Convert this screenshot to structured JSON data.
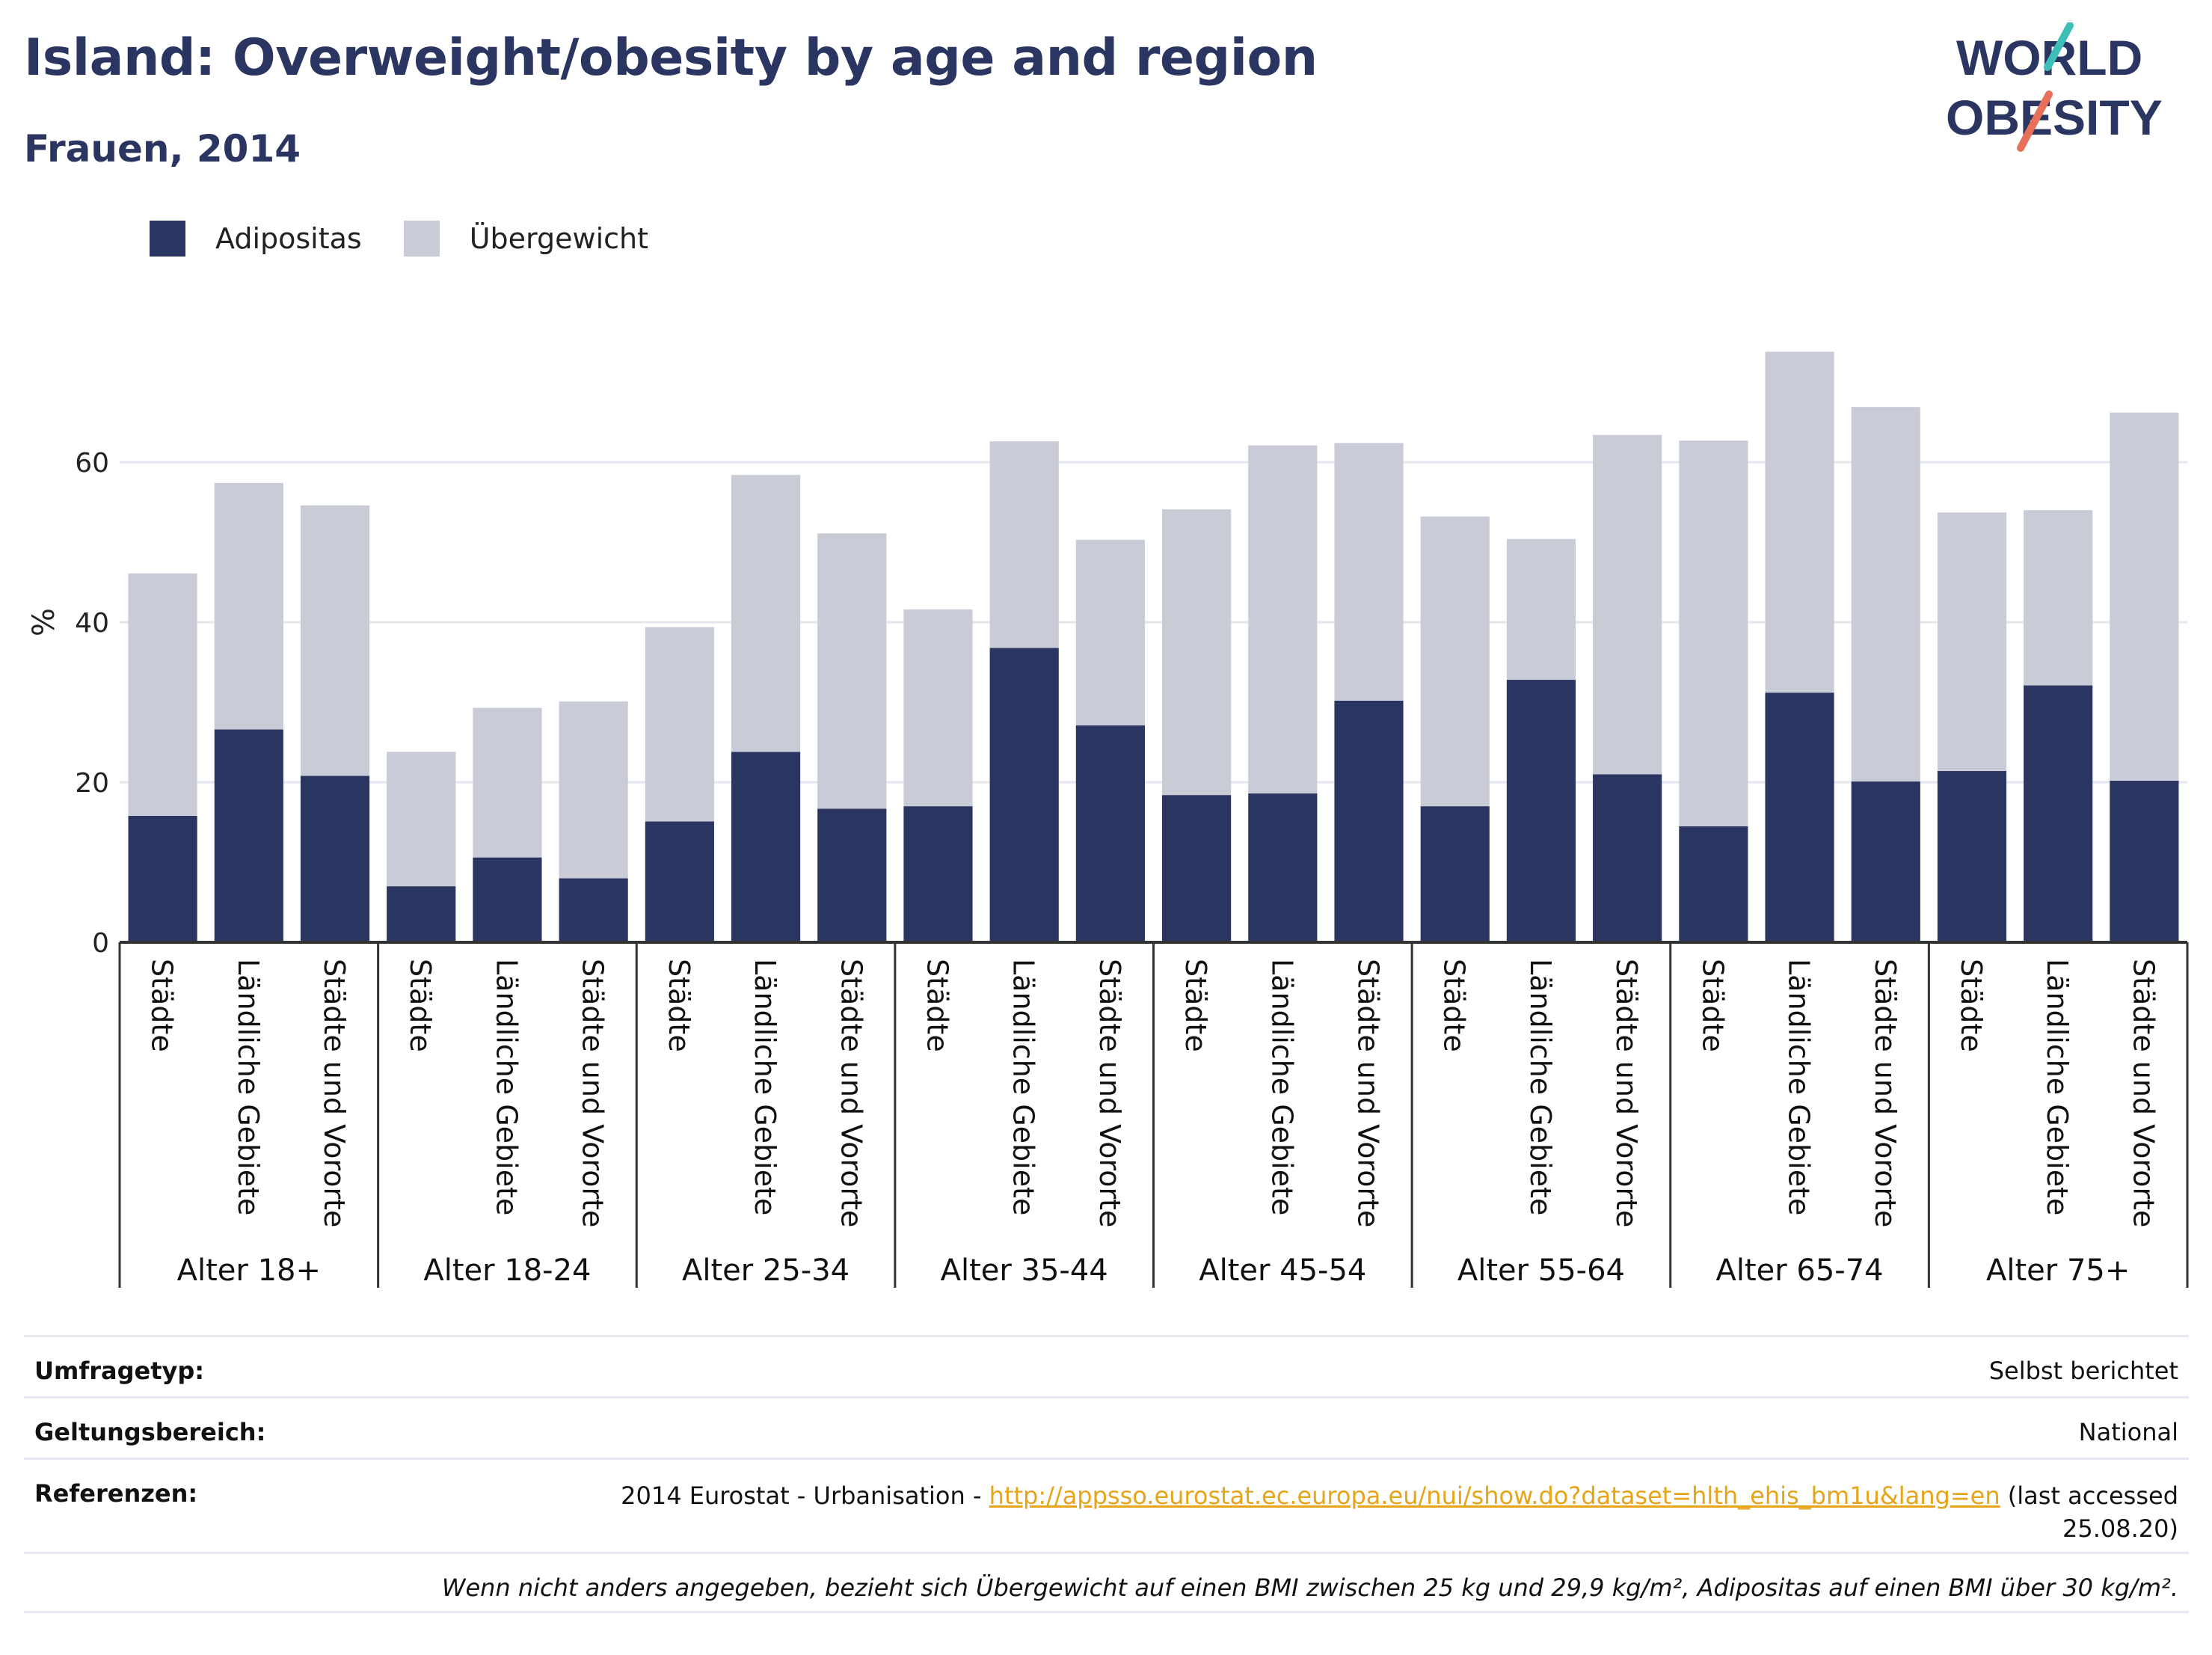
{
  "title": "Island: Overweight/obesity by age and region",
  "subtitle": "Frauen, 2014",
  "logo": {
    "line1": "WORLD",
    "line2": "OBESITY",
    "icon": "world-obesity-logo"
  },
  "colors": {
    "adipositas": "#2b3561",
    "uebergewicht": "#c9cbd6",
    "title": "#2b3561",
    "link": "#e6a419",
    "grid": "#e6e6ee",
    "axis": "#333333"
  },
  "legend": [
    {
      "label": "Adipositas",
      "color": "#2b3561"
    },
    {
      "label": "Übergewicht",
      "color": "#c9cbd6"
    }
  ],
  "chart_data": {
    "type": "bar",
    "stacked": true,
    "ylabel": "%",
    "ylim": [
      0,
      80
    ],
    "yticks": [
      0,
      20,
      40,
      60
    ],
    "grid": true,
    "legend_position": "top-left",
    "groups": [
      {
        "label": "Alter 18+",
        "categories": [
          "Städte",
          "Ländliche Gebiete",
          "Städte und Vororte"
        ]
      },
      {
        "label": "Alter 18-24",
        "categories": [
          "Städte",
          "Ländliche Gebiete",
          "Städte und Vororte"
        ]
      },
      {
        "label": "Alter 25-34",
        "categories": [
          "Städte",
          "Ländliche Gebiete",
          "Städte und Vororte"
        ]
      },
      {
        "label": "Alter 35-44",
        "categories": [
          "Städte",
          "Ländliche Gebiete",
          "Städte und Vororte"
        ]
      },
      {
        "label": "Alter 45-54",
        "categories": [
          "Städte",
          "Ländliche Gebiete",
          "Städte und Vororte"
        ]
      },
      {
        "label": "Alter 55-64",
        "categories": [
          "Städte",
          "Ländliche Gebiete",
          "Städte und Vororte"
        ]
      },
      {
        "label": "Alter 65-74",
        "categories": [
          "Städte",
          "Ländliche Gebiete",
          "Städte und Vororte"
        ]
      },
      {
        "label": "Alter 75+",
        "categories": [
          "Städte",
          "Ländliche Gebiete",
          "Städte und Vororte"
        ]
      }
    ],
    "series": [
      {
        "name": "Adipositas",
        "values": [
          15.8,
          26.6,
          20.8,
          7.0,
          10.6,
          8.0,
          15.1,
          23.8,
          16.7,
          17.0,
          36.8,
          27.1,
          18.4,
          18.6,
          30.2,
          17.0,
          32.8,
          21.0,
          14.5,
          31.2,
          20.1,
          21.4,
          32.1,
          20.2
        ]
      },
      {
        "name": "Übergewicht",
        "values": [
          30.3,
          30.8,
          33.8,
          16.8,
          18.7,
          22.1,
          24.3,
          34.6,
          34.4,
          24.6,
          25.8,
          23.2,
          35.7,
          43.5,
          32.2,
          36.2,
          17.6,
          42.4,
          48.2,
          42.6,
          46.8,
          32.3,
          21.9,
          46.0
        ]
      }
    ]
  },
  "info": {
    "rows": [
      {
        "key": "Umfragetyp:",
        "value": "Selbst berichtet"
      },
      {
        "key": "Geltungsbereich:",
        "value": "National"
      }
    ],
    "references": {
      "key": "Referenzen:",
      "prefix": "2014 Eurostat - Urbanisation - ",
      "link": "http://appsso.eurostat.ec.europa.eu/nui/show.do?dataset=hlth_ehis_bm1u&lang=en",
      "suffix_line1": " (last accessed",
      "suffix_line2": "25.08.20)"
    },
    "footnote": "Wenn nicht anders angegeben, bezieht sich Übergewicht auf einen BMI zwischen 25 kg und 29,9 kg/m², Adipositas auf einen BMI über 30 kg/m²."
  }
}
